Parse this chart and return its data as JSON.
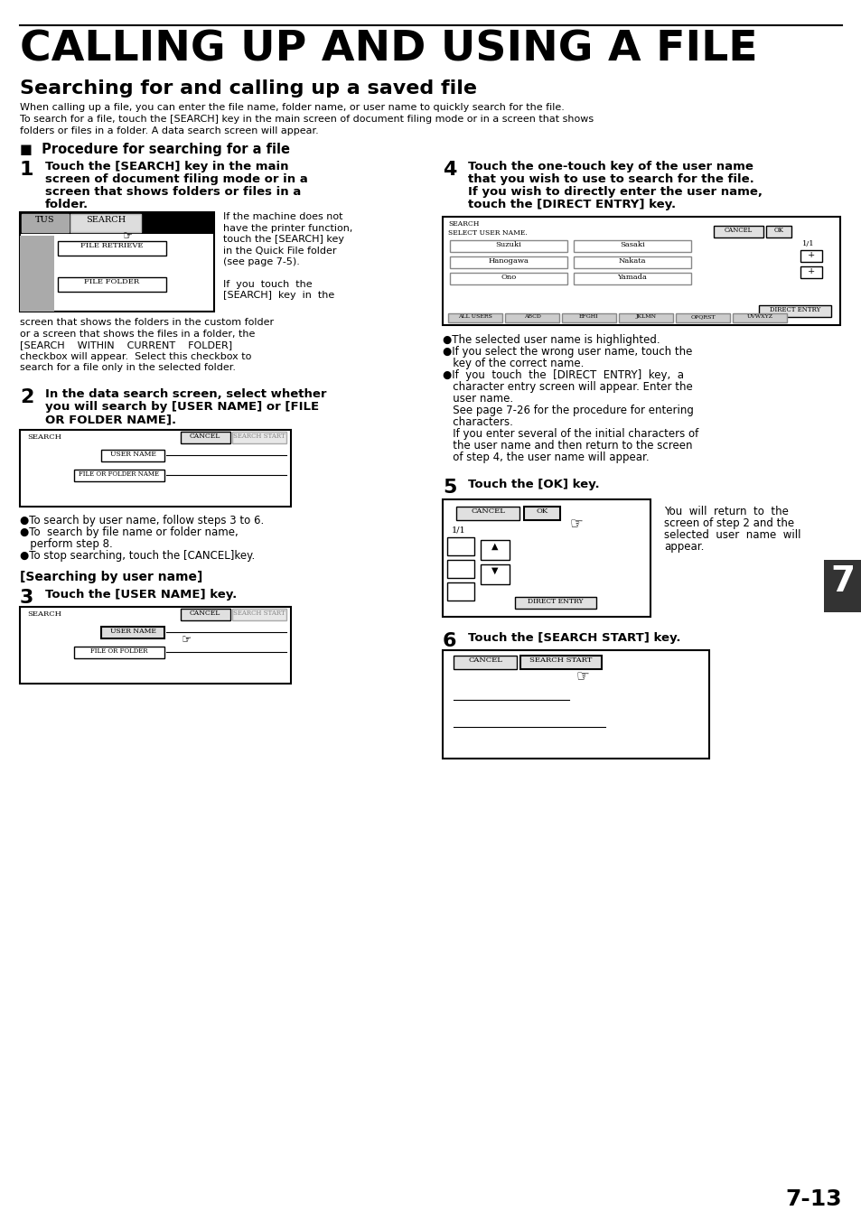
{
  "title": "CALLING UP AND USING A FILE",
  "subtitle": "Searching for and calling up a saved file",
  "intro_line1": "When calling up a file, you can enter the file name, folder name, or user name to quickly search for the file.",
  "intro_line2": "To search for a file, touch the [SEARCH] key in the main screen of document filing mode or in a screen that shows",
  "intro_line3": "folders or files in a folder. A data search screen will appear.",
  "section_header": "■  Procedure for searching for a file",
  "step1_bold": [
    "Touch the [SEARCH] key in the main",
    "screen of document filing mode or in a",
    "screen that shows folders or files in a",
    "folder."
  ],
  "step1_right": [
    "If the machine does not",
    "have the printer function,",
    "touch the [SEARCH] key",
    "in the Quick File folder",
    "(see page 7-5).",
    "",
    "If  you  touch  the",
    "[SEARCH]  key  in  the"
  ],
  "step1_cont": [
    "screen that shows the folders in the custom folder",
    "or a screen that shows the files in a folder, the",
    "[SEARCH    WITHIN    CURRENT    FOLDER]",
    "checkbox will appear.  Select this checkbox to",
    "search for a file only in the selected folder."
  ],
  "step2_bold": [
    "In the data search screen, select whether",
    "you will search by [USER NAME] or [FILE",
    "OR FOLDER NAME]."
  ],
  "step2_bullets": [
    "●To search by user name, follow steps 3 to 6.",
    "●To  search by file name or folder name,",
    "   perform step 8.",
    "●To stop searching, touch the [CANCEL]key."
  ],
  "search_by_user": "[Searching by user name]",
  "step3_bold": "Touch the [USER NAME] key.",
  "step4_bold": [
    "Touch the one-touch key of the user name",
    "that you wish to use to search for the file.",
    "If you wish to directly enter the user name,",
    "touch the [DIRECT ENTRY] key."
  ],
  "step4_bullets": [
    "●The selected user name is highlighted.",
    "●If you select the wrong user name, touch the",
    "   key of the correct name.",
    "●If  you  touch  the  [DIRECT  ENTRY]  key,  a",
    "   character entry screen will appear. Enter the",
    "   user name.",
    "   See page 7-26 for the procedure for entering",
    "   characters.",
    "   If you enter several of the initial characters of",
    "   the user name and then return to the screen",
    "   of step 4, the user name will appear."
  ],
  "step5_bold": "Touch the [OK] key.",
  "step5_right": [
    "You  will  return  to  the",
    "screen of step 2 and the",
    "selected  user  name  will",
    "appear."
  ],
  "step6_bold": "Touch the [SEARCH START] key.",
  "names_left": [
    "Suzuki",
    "Hanogawa",
    "Ono"
  ],
  "names_right": [
    "Sasaki",
    "Nakata",
    "Yamada"
  ],
  "tab_labels": [
    "ALL USERS",
    "ABCD",
    "EFGHI",
    "JKLMN",
    "OPQRST",
    "UVWXYZ"
  ],
  "page_number": "7-13",
  "chapter_number": "7",
  "bg": "#ffffff"
}
